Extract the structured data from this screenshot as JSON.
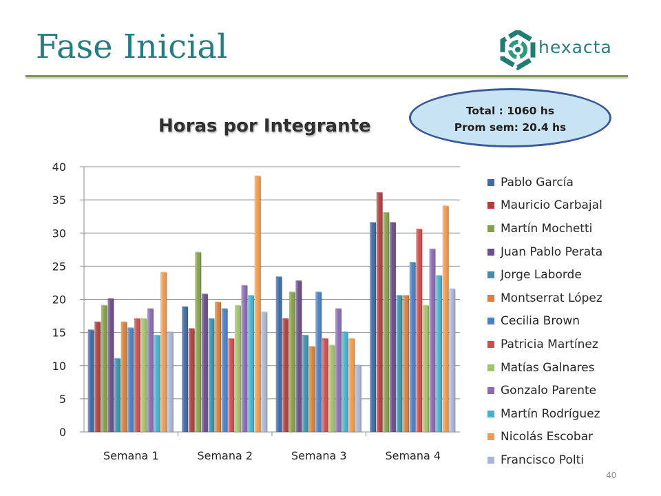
{
  "slide": {
    "title": "Fase Inicial",
    "logo_text": "hexacta",
    "page_number": "40"
  },
  "summary": {
    "total": "Total : 1060 hs",
    "average": "Prom sem: 20.4 hs"
  },
  "chart_data": {
    "type": "bar",
    "title": "Horas por Integrante",
    "xlabel": "",
    "ylabel": "",
    "ylim": [
      0,
      40
    ],
    "yticks": [
      0,
      5,
      10,
      15,
      20,
      25,
      30,
      35,
      40
    ],
    "categories": [
      "Semana 1",
      "Semana 2",
      "Semana 3",
      "Semana 4"
    ],
    "grid": true,
    "legend_position": "right",
    "series": [
      {
        "name": "Pablo García",
        "color": "#3e6aa8",
        "values": [
          15.3,
          18.8,
          23.3,
          31.5
        ]
      },
      {
        "name": "Mauricio Carbajal",
        "color": "#b0403d",
        "values": [
          16.5,
          15.5,
          17.0,
          36.0
        ]
      },
      {
        "name": "Martín Mochetti",
        "color": "#84a24a",
        "values": [
          19.0,
          27.0,
          21.0,
          33.0
        ]
      },
      {
        "name": "Juan Pablo Perata",
        "color": "#6a4d8a",
        "values": [
          20.0,
          20.7,
          22.7,
          31.5
        ]
      },
      {
        "name": "Jorge Laborde",
        "color": "#3a93aa",
        "values": [
          11.0,
          17.0,
          14.5,
          20.5
        ]
      },
      {
        "name": "Montserrat López",
        "color": "#d9813a",
        "values": [
          16.5,
          19.5,
          12.8,
          20.5
        ]
      },
      {
        "name": "Cecilia Brown",
        "color": "#4a80c6",
        "values": [
          15.6,
          18.5,
          21.0,
          25.5
        ]
      },
      {
        "name": "Patricia Martínez",
        "color": "#cf4d4a",
        "values": [
          17.0,
          14.0,
          14.0,
          30.5
        ]
      },
      {
        "name": "Matías Galnares",
        "color": "#a3c36a",
        "values": [
          17.0,
          19.0,
          13.0,
          19.0
        ]
      },
      {
        "name": "Gonzalo Parente",
        "color": "#8a6bb3",
        "values": [
          18.5,
          22.0,
          18.5,
          27.5
        ]
      },
      {
        "name": "Martín Rodríguez",
        "color": "#44b3cd",
        "values": [
          14.5,
          20.5,
          15.0,
          23.5
        ]
      },
      {
        "name": "Nicolás Escobar",
        "color": "#f39a4c",
        "values": [
          24.0,
          38.5,
          14.0,
          34.0
        ]
      },
      {
        "name": "Francisco Polti",
        "color": "#a9b7d6",
        "values": [
          15.0,
          18.0,
          10.0,
          21.5
        ]
      }
    ]
  }
}
